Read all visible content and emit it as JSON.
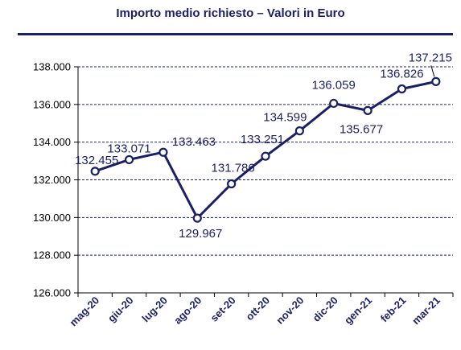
{
  "chart_data": {
    "type": "line",
    "title": "Importo medio richiesto – Valori in Euro",
    "xlabel": "",
    "ylabel": "",
    "categories": [
      "mag-20",
      "giu-20",
      "lug-20",
      "ago-20",
      "set-20",
      "ott-20",
      "nov-20",
      "dic-20",
      "gen-21",
      "feb-21",
      "mar-21"
    ],
    "values": [
      132455,
      133071,
      133463,
      129967,
      131786,
      133251,
      134599,
      136059,
      135677,
      136826,
      137215
    ],
    "data_labels": [
      "132.455",
      "133.071",
      "133.463",
      "129.967",
      "131.786",
      "133.251",
      "134.599",
      "136.059",
      "135.677",
      "136.826",
      "137.215"
    ],
    "yticks": [
      126000,
      128000,
      130000,
      132000,
      134000,
      136000,
      138000
    ],
    "ytick_labels": [
      "126.000",
      "128.000",
      "130.000",
      "132.000",
      "134.000",
      "136.000",
      "138.000"
    ],
    "ylim": [
      126000,
      138000
    ],
    "grid": true,
    "legend": "none",
    "colors": {
      "line": "#1a1f66",
      "marker_fill": "#ffffff",
      "grid": "#1a1f66",
      "title": "#1a1f66"
    }
  }
}
